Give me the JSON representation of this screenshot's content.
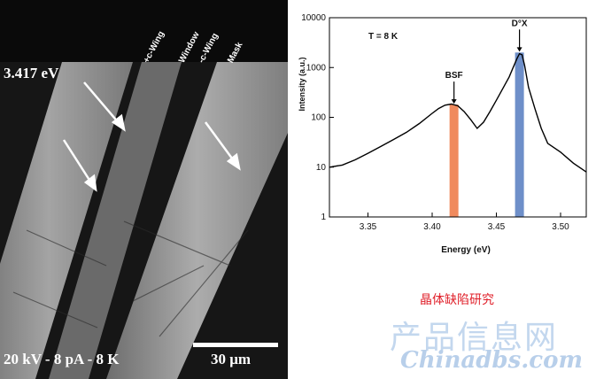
{
  "micrograph": {
    "energy_label": "3.417 eV",
    "conditions_label": "20 kV - 8 pA - 8 K",
    "scale_label": "30 μm",
    "stripe_labels": [
      "+c-Wing",
      "Window",
      "-c-Wing",
      "Mask"
    ]
  },
  "chart_data": {
    "type": "line",
    "annotation": "T = 8 K",
    "xlabel": "Energy (eV)",
    "ylabel": "Intensity (a.u.)",
    "xlim": [
      3.32,
      3.52
    ],
    "ylim": [
      1,
      10000
    ],
    "yscale": "log",
    "x_ticks": [
      3.35,
      3.4,
      3.45,
      3.5
    ],
    "x_tick_labels": [
      "3.35",
      "3.40",
      "3.45",
      "3.50"
    ],
    "y_ticks": [
      1,
      10,
      100,
      1000,
      10000
    ],
    "y_tick_labels": [
      "1",
      "10",
      "100",
      "1000",
      "10000"
    ],
    "series": [
      {
        "x": [
          3.32,
          3.33,
          3.34,
          3.35,
          3.36,
          3.37,
          3.38,
          3.39,
          3.4,
          3.405,
          3.41,
          3.415,
          3.42,
          3.425,
          3.43,
          3.435,
          3.44,
          3.445,
          3.45,
          3.455,
          3.46,
          3.463,
          3.466,
          3.468,
          3.47,
          3.472,
          3.475,
          3.48,
          3.485,
          3.49,
          3.5,
          3.51,
          3.52
        ],
        "values": [
          10,
          11,
          14,
          19,
          26,
          36,
          50,
          75,
          120,
          150,
          175,
          185,
          170,
          130,
          90,
          60,
          80,
          130,
          220,
          380,
          650,
          1000,
          1500,
          1900,
          1800,
          1100,
          400,
          150,
          60,
          30,
          20,
          12,
          8
        ]
      }
    ],
    "highlights": [
      {
        "label": "BSF",
        "x": 3.417,
        "value": 180,
        "color": "#f08a5d"
      },
      {
        "label": "D°X",
        "x": 3.468,
        "value": 2000,
        "color": "#6e8fc9"
      }
    ]
  },
  "watermark": {
    "subtitle_cn": "晶体缺陷研究",
    "title_cn": "产品信息网",
    "url": "Chinadbs.com"
  }
}
